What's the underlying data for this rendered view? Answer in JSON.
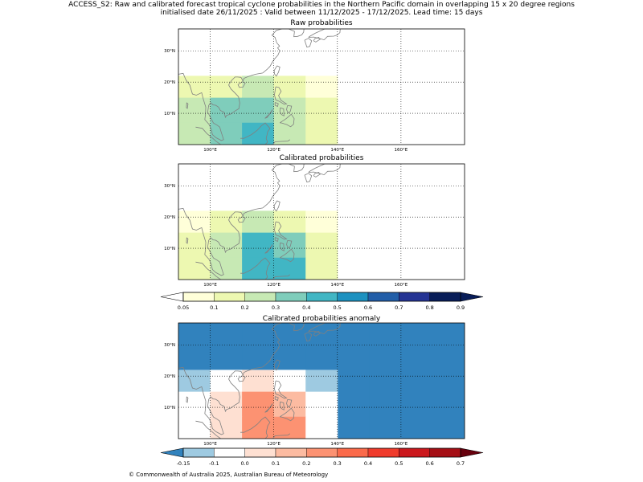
{
  "title_line1": "ACCESS_S2: Raw and calibrated forecast tropical cyclone probabilities in the Northern Pacific domain in overlapping 15 x 20 degree regions",
  "title_line2": "initialised date 26/11/2025 :  Valid between 11/12/2025 - 17/12/2025. Lead time: 15 days",
  "copyright": "© Commonwealth of Australia 2025, Australian Bureau of Meteorology",
  "colors": {
    "coast": "#808080",
    "prob_scale": [
      "#ffffd9",
      "#edf8b1",
      "#c7e9b4",
      "#7fcdbb",
      "#41b6c4",
      "#1d91c0",
      "#225ea8",
      "#253494",
      "#081d58"
    ],
    "prob_under": "#ffffff",
    "prob_over": "#081d58",
    "anom_scale": [
      "#9ecae1",
      "#ffffff",
      "#fee0d2",
      "#fcbba1",
      "#fc9272",
      "#fb6a4a",
      "#ef3b2c",
      "#cb181d",
      "#a50f15"
    ],
    "anom_under": "#3182bd",
    "anom_over": "#67000d"
  },
  "chart_data": [
    {
      "type": "heatmap",
      "title": "Raw probabilities",
      "xlim": [
        90,
        180
      ],
      "ylim": [
        0,
        37
      ],
      "xticks": [
        100,
        120,
        140,
        160
      ],
      "xtick_labels": [
        "100°E",
        "120°E",
        "140°E",
        "160°E"
      ],
      "yticks": [
        10,
        20,
        30
      ],
      "ytick_labels": [
        "10°N",
        "20°N",
        "30°N"
      ],
      "grid": true,
      "colorbar": "probability",
      "cells": [
        {
          "lon": [
            90,
            110
          ],
          "lat": [
            22,
            37
          ],
          "value": 0.0
        },
        {
          "lon": [
            110,
            130
          ],
          "lat": [
            22,
            37
          ],
          "value": 0.0
        },
        {
          "lon": [
            130,
            150
          ],
          "lat": [
            22,
            37
          ],
          "value": 0.0
        },
        {
          "lon": [
            150,
            180
          ],
          "lat": [
            0,
            37
          ],
          "value": 0.0
        },
        {
          "lon": [
            90,
            100
          ],
          "lat": [
            15,
            22
          ],
          "value": 0.15
        },
        {
          "lon": [
            100,
            110
          ],
          "lat": [
            15,
            22
          ],
          "value": 0.15
        },
        {
          "lon": [
            110,
            120
          ],
          "lat": [
            15,
            22
          ],
          "value": 0.25
        },
        {
          "lon": [
            120,
            130
          ],
          "lat": [
            15,
            22
          ],
          "value": 0.15
        },
        {
          "lon": [
            130,
            140
          ],
          "lat": [
            15,
            22
          ],
          "value": 0.07
        },
        {
          "lon": [
            90,
            100
          ],
          "lat": [
            7,
            15
          ],
          "value": 0.25
        },
        {
          "lon": [
            100,
            110
          ],
          "lat": [
            7,
            15
          ],
          "value": 0.35
        },
        {
          "lon": [
            110,
            120
          ],
          "lat": [
            7,
            15
          ],
          "value": 0.35
        },
        {
          "lon": [
            120,
            130
          ],
          "lat": [
            7,
            15
          ],
          "value": 0.25
        },
        {
          "lon": [
            130,
            140
          ],
          "lat": [
            7,
            15
          ],
          "value": 0.15
        },
        {
          "lon": [
            90,
            100
          ],
          "lat": [
            0,
            7
          ],
          "value": 0.25
        },
        {
          "lon": [
            100,
            110
          ],
          "lat": [
            0,
            7
          ],
          "value": 0.35
        },
        {
          "lon": [
            110,
            120
          ],
          "lat": [
            0,
            7
          ],
          "value": 0.45
        },
        {
          "lon": [
            120,
            130
          ],
          "lat": [
            0,
            7
          ],
          "value": 0.25
        },
        {
          "lon": [
            130,
            140
          ],
          "lat": [
            0,
            7
          ],
          "value": 0.15
        }
      ]
    },
    {
      "type": "heatmap",
      "title": "Calibrated probabilities",
      "xlim": [
        90,
        180
      ],
      "ylim": [
        0,
        37
      ],
      "xticks": [
        100,
        120,
        140,
        160
      ],
      "xtick_labels": [
        "100°E",
        "120°E",
        "140°E",
        "160°E"
      ],
      "yticks": [
        10,
        20,
        30
      ],
      "ytick_labels": [
        "10°N",
        "20°N",
        "30°N"
      ],
      "grid": true,
      "colorbar": "probability",
      "cells": [
        {
          "lon": [
            90,
            110
          ],
          "lat": [
            22,
            37
          ],
          "value": 0.0
        },
        {
          "lon": [
            110,
            130
          ],
          "lat": [
            22,
            37
          ],
          "value": 0.0
        },
        {
          "lon": [
            130,
            150
          ],
          "lat": [
            22,
            37
          ],
          "value": 0.0
        },
        {
          "lon": [
            150,
            180
          ],
          "lat": [
            0,
            37
          ],
          "value": 0.0
        },
        {
          "lon": [
            90,
            100
          ],
          "lat": [
            15,
            22
          ],
          "value": 0.07
        },
        {
          "lon": [
            100,
            110
          ],
          "lat": [
            15,
            22
          ],
          "value": 0.15
        },
        {
          "lon": [
            110,
            120
          ],
          "lat": [
            15,
            22
          ],
          "value": 0.25
        },
        {
          "lon": [
            120,
            130
          ],
          "lat": [
            15,
            22
          ],
          "value": 0.15
        },
        {
          "lon": [
            130,
            140
          ],
          "lat": [
            15,
            22
          ],
          "value": 0.07
        },
        {
          "lon": [
            90,
            100
          ],
          "lat": [
            7,
            15
          ],
          "value": 0.15
        },
        {
          "lon": [
            100,
            110
          ],
          "lat": [
            7,
            15
          ],
          "value": 0.25
        },
        {
          "lon": [
            110,
            120
          ],
          "lat": [
            7,
            15
          ],
          "value": 0.45
        },
        {
          "lon": [
            120,
            130
          ],
          "lat": [
            7,
            15
          ],
          "value": 0.35
        },
        {
          "lon": [
            130,
            140
          ],
          "lat": [
            7,
            15
          ],
          "value": 0.15
        },
        {
          "lon": [
            90,
            100
          ],
          "lat": [
            0,
            7
          ],
          "value": 0.15
        },
        {
          "lon": [
            100,
            110
          ],
          "lat": [
            0,
            7
          ],
          "value": 0.25
        },
        {
          "lon": [
            110,
            120
          ],
          "lat": [
            0,
            7
          ],
          "value": 0.45
        },
        {
          "lon": [
            120,
            130
          ],
          "lat": [
            0,
            7
          ],
          "value": 0.45
        },
        {
          "lon": [
            130,
            140
          ],
          "lat": [
            0,
            7
          ],
          "value": 0.15
        }
      ]
    },
    {
      "type": "heatmap",
      "title": "Calibrated probabilities anomaly",
      "xlim": [
        90,
        180
      ],
      "ylim": [
        0,
        37
      ],
      "xticks": [
        100,
        120,
        140,
        160
      ],
      "xtick_labels": [
        "100°E",
        "120°E",
        "140°E",
        "160°E"
      ],
      "yticks": [
        10,
        20,
        30
      ],
      "ytick_labels": [
        "10°N",
        "20°N",
        "30°N"
      ],
      "grid": true,
      "colorbar": "anomaly",
      "cells": [
        {
          "lon": [
            90,
            110
          ],
          "lat": [
            22,
            37
          ],
          "value": -0.2
        },
        {
          "lon": [
            110,
            130
          ],
          "lat": [
            22,
            37
          ],
          "value": -0.2
        },
        {
          "lon": [
            130,
            150
          ],
          "lat": [
            22,
            37
          ],
          "value": -0.2
        },
        {
          "lon": [
            150,
            180
          ],
          "lat": [
            0,
            37
          ],
          "value": -0.2
        },
        {
          "lon": [
            140,
            150
          ],
          "lat": [
            0,
            22
          ],
          "value": -0.2
        },
        {
          "lon": [
            90,
            100
          ],
          "lat": [
            15,
            22
          ],
          "value": -0.12
        },
        {
          "lon": [
            100,
            110
          ],
          "lat": [
            15,
            22
          ],
          "value": -0.05
        },
        {
          "lon": [
            110,
            120
          ],
          "lat": [
            15,
            22
          ],
          "value": 0.05
        },
        {
          "lon": [
            120,
            130
          ],
          "lat": [
            15,
            22
          ],
          "value": -0.05
        },
        {
          "lon": [
            130,
            140
          ],
          "lat": [
            15,
            22
          ],
          "value": -0.12
        },
        {
          "lon": [
            90,
            100
          ],
          "lat": [
            7,
            15
          ],
          "value": -0.05
        },
        {
          "lon": [
            100,
            110
          ],
          "lat": [
            7,
            15
          ],
          "value": 0.05
        },
        {
          "lon": [
            110,
            120
          ],
          "lat": [
            7,
            15
          ],
          "value": 0.25
        },
        {
          "lon": [
            120,
            130
          ],
          "lat": [
            7,
            15
          ],
          "value": 0.15
        },
        {
          "lon": [
            130,
            140
          ],
          "lat": [
            7,
            15
          ],
          "value": -0.05
        },
        {
          "lon": [
            90,
            100
          ],
          "lat": [
            0,
            7
          ],
          "value": -0.05
        },
        {
          "lon": [
            100,
            110
          ],
          "lat": [
            0,
            7
          ],
          "value": 0.05
        },
        {
          "lon": [
            110,
            120
          ],
          "lat": [
            0,
            7
          ],
          "value": 0.25
        },
        {
          "lon": [
            120,
            130
          ],
          "lat": [
            0,
            7
          ],
          "value": 0.25
        },
        {
          "lon": [
            130,
            140
          ],
          "lat": [
            0,
            7
          ],
          "value": -0.05
        }
      ]
    }
  ],
  "colorbars": {
    "probability": {
      "bounds": [
        0.05,
        0.1,
        0.2,
        0.3,
        0.4,
        0.5,
        0.6,
        0.7,
        0.8,
        0.9
      ],
      "labels": [
        "0.05",
        "0.1",
        "0.2",
        "0.3",
        "0.4",
        "0.5",
        "0.6",
        "0.7",
        "0.8",
        "0.9"
      ],
      "extend": "both"
    },
    "anomaly": {
      "bounds": [
        -0.15,
        -0.1,
        0.0,
        0.1,
        0.2,
        0.3,
        0.4,
        0.5,
        0.6,
        0.7
      ],
      "labels": [
        "-0.15",
        "-0.1",
        "0.0",
        "0.1",
        "0.2",
        "0.3",
        "0.4",
        "0.5",
        "0.6",
        "0.7"
      ],
      "extend": "both"
    }
  }
}
